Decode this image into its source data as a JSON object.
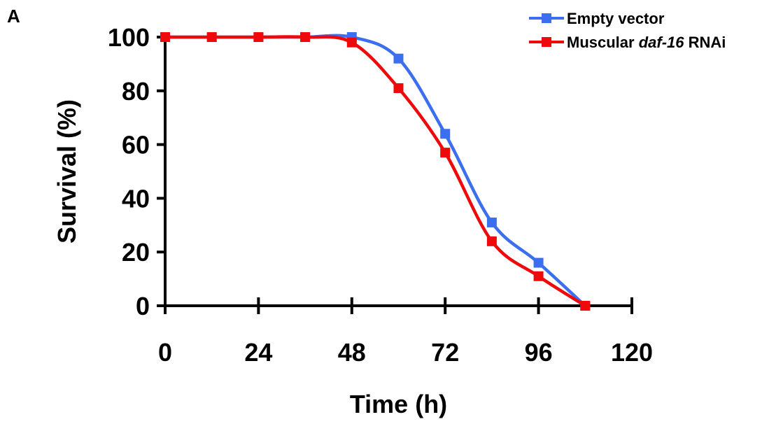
{
  "panel_label": "A",
  "chart_data": {
    "type": "line",
    "xlabel": "Time (h)",
    "ylabel": "Survival (%)",
    "xlim": [
      0,
      120
    ],
    "ylim": [
      0,
      100
    ],
    "x_ticks": [
      0,
      24,
      48,
      72,
      96,
      120
    ],
    "y_ticks": [
      0,
      20,
      40,
      60,
      80,
      100
    ],
    "grid": false,
    "legend_position": "top-right",
    "series": [
      {
        "name": "Empty vector",
        "color": "#3b6ff0",
        "x": [
          0,
          12,
          24,
          36,
          48,
          60,
          72,
          84,
          96,
          108
        ],
        "values": [
          100,
          100,
          100,
          100,
          100,
          92,
          64,
          31,
          16,
          0
        ]
      },
      {
        "name_prefix": "Muscular ",
        "name_italic": "daf-16",
        "name_suffix": " RNAi",
        "color": "#ee0a0a",
        "x": [
          0,
          12,
          24,
          36,
          48,
          60,
          72,
          84,
          96,
          108
        ],
        "values": [
          100,
          100,
          100,
          100,
          98,
          81,
          57,
          24,
          11,
          0
        ]
      }
    ]
  }
}
